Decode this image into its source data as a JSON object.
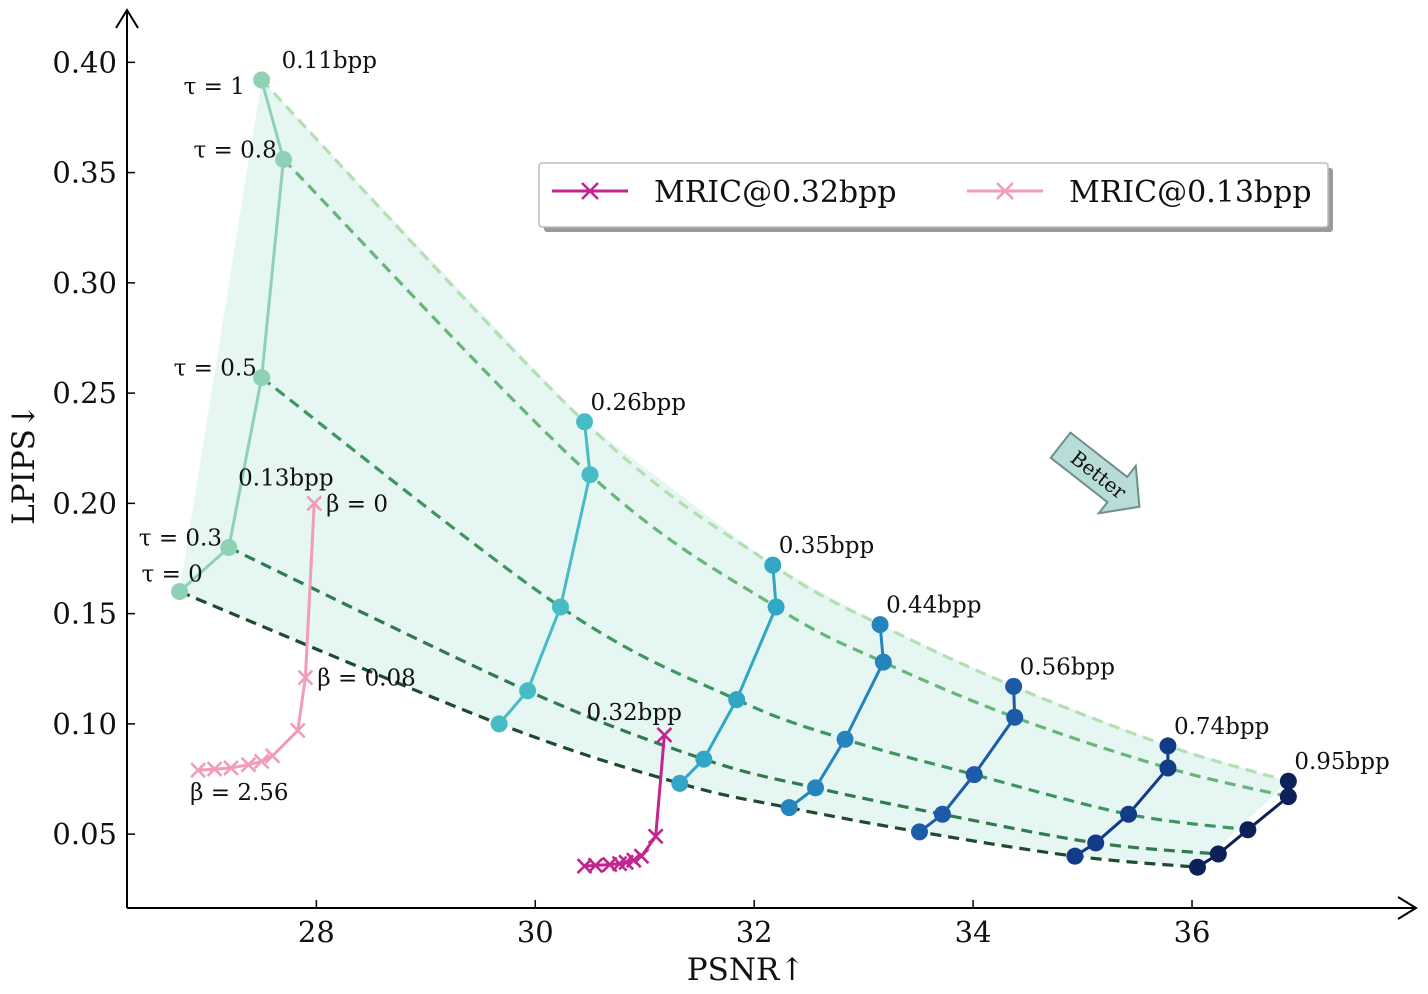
{
  "chart_data": {
    "type": "line",
    "xlabel": "PSNR↑",
    "ylabel": "LPIPS↓",
    "xlim": [
      26.27,
      37.9
    ],
    "ylim": [
      0.0165,
      0.4192
    ],
    "x_ticks": [
      28,
      30,
      32,
      34,
      36
    ],
    "x_tick_labels": [
      "28",
      "30",
      "32",
      "34",
      "36"
    ],
    "y_ticks": [
      0.05,
      0.1,
      0.15,
      0.2,
      0.25,
      0.3,
      0.35,
      0.4
    ],
    "y_tick_labels": [
      "0.05",
      "0.10",
      "0.15",
      "0.20",
      "0.25",
      "0.30",
      "0.35",
      "0.40"
    ],
    "grid": false,
    "legend": {
      "placement": "top-right",
      "entries": [
        {
          "label": "MRIC@0.32bpp",
          "color": "#c2258f",
          "marker": "x"
        },
        {
          "label": "MRIC@0.13bpp",
          "color": "#f29cb8",
          "marker": "x"
        }
      ]
    },
    "bitrate_series": [
      {
        "name": "0.11bpp",
        "color": "#8fd1b4",
        "x": [
          26.75,
          27.2,
          27.5,
          27.7,
          27.5
        ],
        "y": [
          0.16,
          0.18,
          0.257,
          0.356,
          0.392
        ]
      },
      {
        "name": "0.26bpp",
        "color": "#48bcc4",
        "x": [
          29.67,
          29.93,
          30.23,
          30.5,
          30.45
        ],
        "y": [
          0.1,
          0.115,
          0.153,
          0.213,
          0.237
        ]
      },
      {
        "name": "0.35bpp",
        "color": "#31a6c5",
        "x": [
          31.32,
          31.54,
          31.84,
          32.2,
          32.17
        ],
        "y": [
          0.073,
          0.084,
          0.111,
          0.153,
          0.172
        ]
      },
      {
        "name": "0.44bpp",
        "color": "#2583bd",
        "x": [
          32.32,
          32.56,
          32.83,
          33.18,
          33.15
        ],
        "y": [
          0.062,
          0.071,
          0.093,
          0.128,
          0.145
        ]
      },
      {
        "name": "0.56bpp",
        "color": "#1d5aa8",
        "x": [
          33.51,
          33.72,
          34.01,
          34.38,
          34.37
        ],
        "y": [
          0.051,
          0.059,
          0.077,
          0.103,
          0.117
        ]
      },
      {
        "name": "0.74bpp",
        "color": "#123b88",
        "x": [
          34.93,
          35.12,
          35.42,
          35.78,
          35.78
        ],
        "y": [
          0.04,
          0.046,
          0.059,
          0.08,
          0.09
        ]
      },
      {
        "name": "0.95bpp",
        "color": "#0b2157",
        "x": [
          36.05,
          36.24,
          36.51,
          36.88,
          36.88
        ],
        "y": [
          0.035,
          0.041,
          0.052,
          0.067,
          0.074
        ]
      }
    ],
    "tau_curves": [
      {
        "tau_label": "τ = 0",
        "color": "#1f4a2f",
        "y": [
          0.16,
          0.1,
          0.073,
          0.062,
          0.051,
          0.04,
          0.035
        ]
      },
      {
        "tau_label": "τ = 0.3",
        "color": "#2f7a4e",
        "y": [
          0.18,
          0.115,
          0.084,
          0.071,
          0.059,
          0.046,
          0.041
        ]
      },
      {
        "tau_label": "τ = 0.5",
        "color": "#3f9560",
        "y": [
          0.257,
          0.153,
          0.111,
          0.093,
          0.077,
          0.059,
          0.052
        ]
      },
      {
        "tau_label": "τ = 0.8",
        "color": "#66b57a",
        "y": [
          0.356,
          0.213,
          0.153,
          0.128,
          0.103,
          0.08,
          0.067
        ]
      },
      {
        "tau_label": "τ = 1",
        "color": "#b3dfb3",
        "y": [
          0.392,
          0.237,
          0.172,
          0.145,
          0.117,
          0.09,
          0.074
        ]
      }
    ],
    "mric_series": [
      {
        "name": "MRIC@0.32bpp",
        "color": "#c2258f",
        "x": [
          30.45,
          30.55,
          30.68,
          30.77,
          30.83,
          30.9,
          30.97,
          31.1,
          31.18
        ],
        "y": [
          0.0355,
          0.0358,
          0.0362,
          0.0366,
          0.0372,
          0.0382,
          0.04,
          0.049,
          0.095
        ]
      },
      {
        "name": "MRIC@0.13bpp",
        "color": "#f29cb8",
        "x": [
          26.92,
          27.07,
          27.22,
          27.38,
          27.5,
          27.6,
          27.83,
          27.9,
          27.98
        ],
        "y": [
          0.079,
          0.0795,
          0.08,
          0.0815,
          0.083,
          0.0855,
          0.097,
          0.121,
          0.2
        ]
      }
    ],
    "annotations": {
      "bitrate_labels": [
        "0.11bpp",
        "0.26bpp",
        "0.35bpp",
        "0.44bpp",
        "0.56bpp",
        "0.74bpp",
        "0.95bpp",
        "0.13bpp",
        "0.32bpp"
      ],
      "beta_labels": [
        "β = 0",
        "β = 0.08",
        "β = 2.56"
      ],
      "better_label": "Better"
    }
  }
}
